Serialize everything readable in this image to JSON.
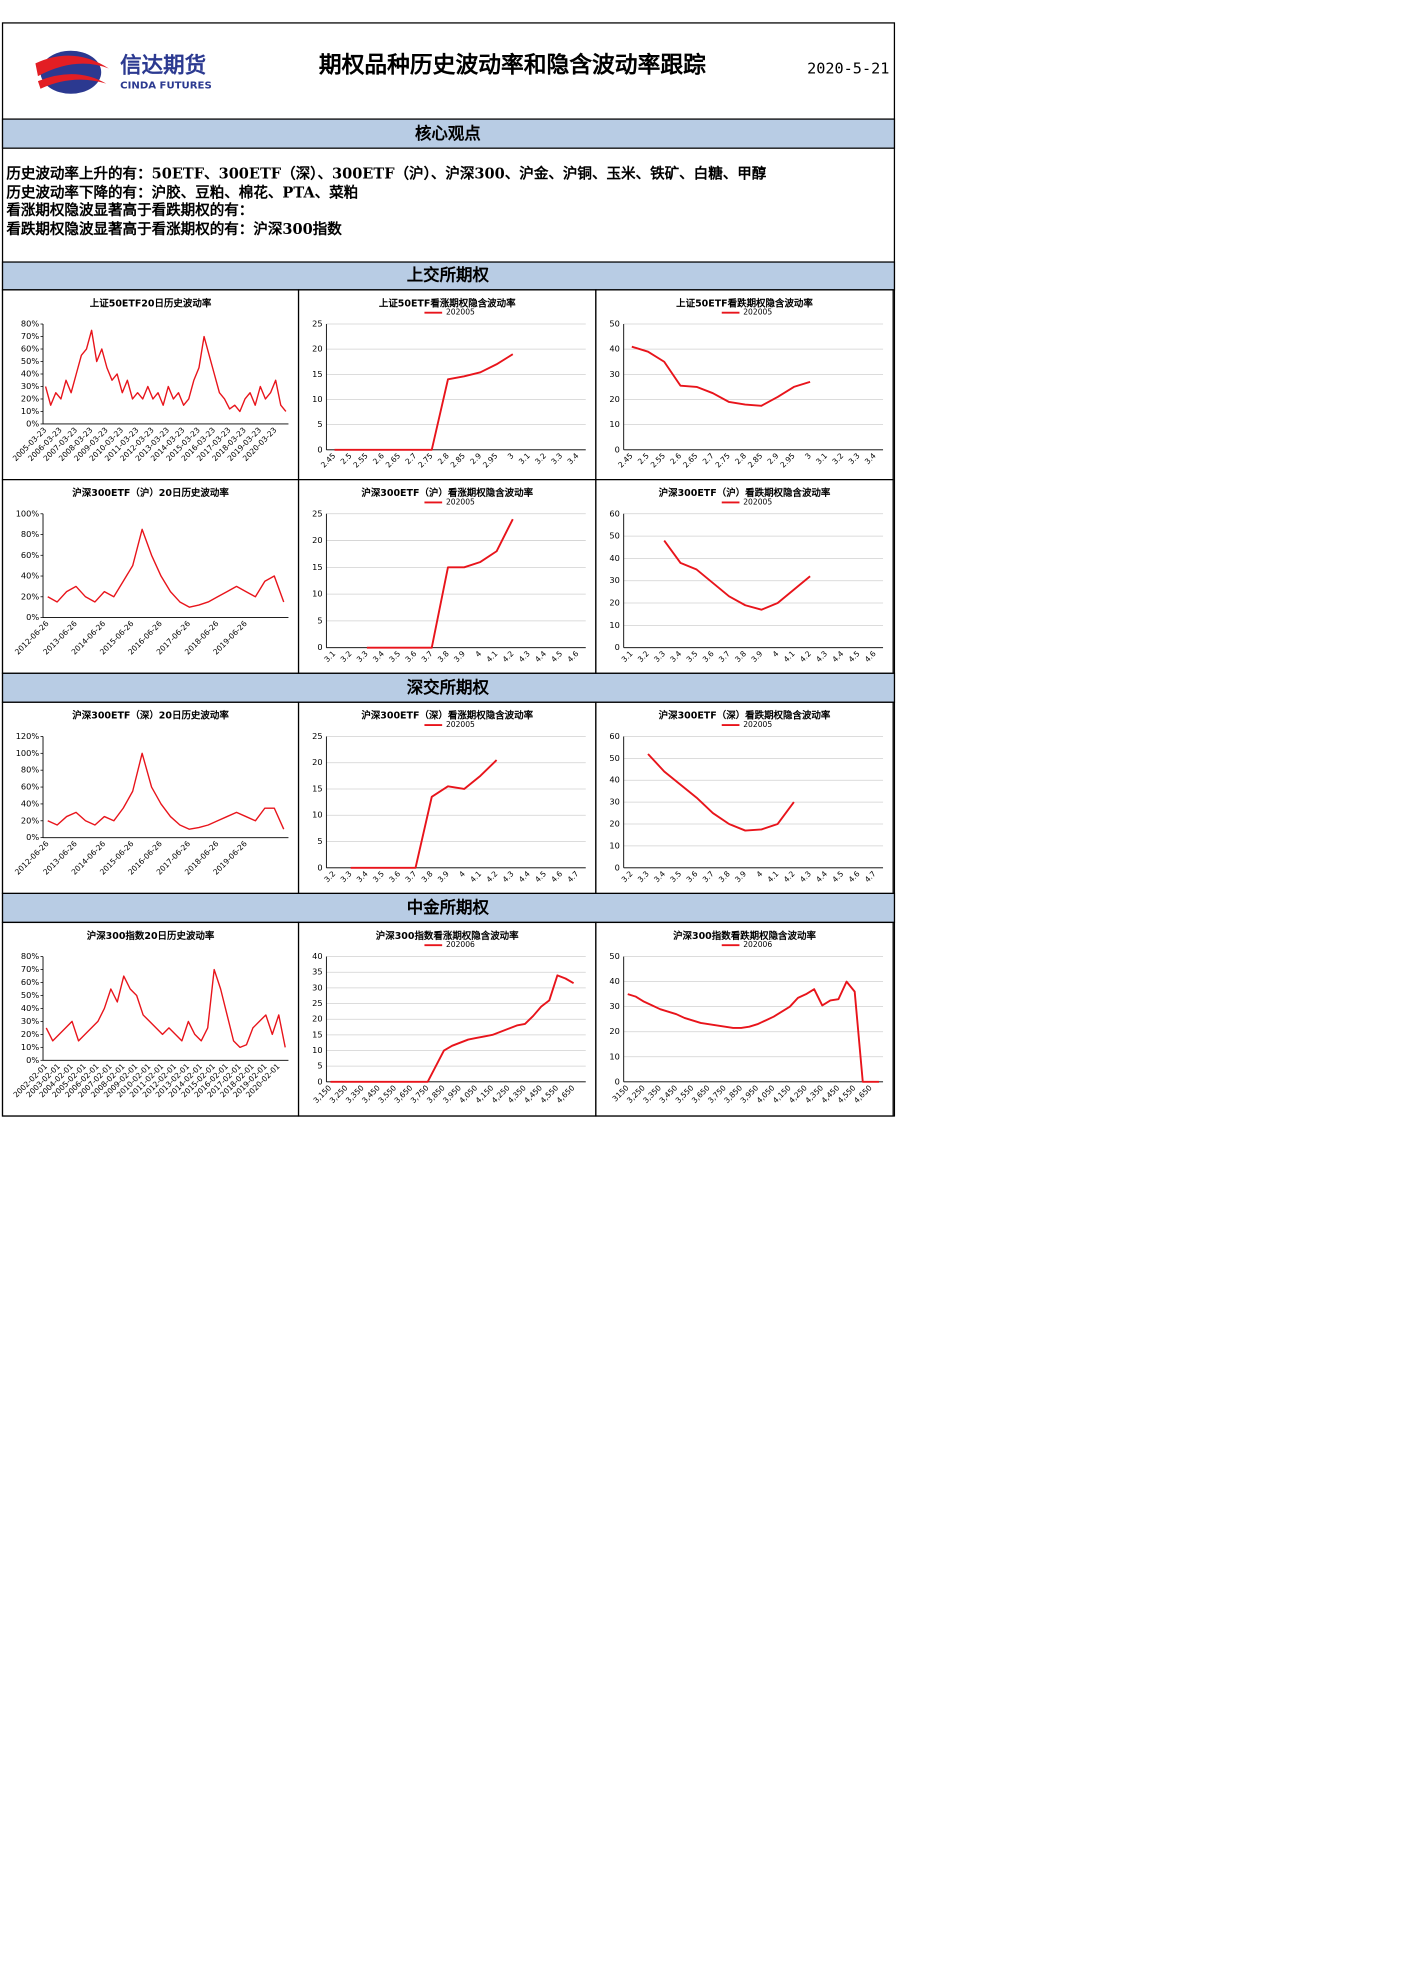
{
  "header": {
    "logo_cn": "信达期货",
    "logo_en": "CINDA FUTURES",
    "title": "期权品种历史波动率和隐含波动率跟踪",
    "date": "2020-5-21"
  },
  "core_view": {
    "title": "核心观点",
    "lines": [
      "历史波动率上升的有：50ETF、300ETF（深）、300ETF（沪）、沪深300、沪金、沪铜、玉米、铁矿、白糖、甲醇",
      "历史波动率下降的有：沪胶、豆粕、棉花、PTA、菜粕",
      "看涨期权隐波显著高于看跌期权的有：",
      "看跌期权隐波显著高于看涨期权的有：沪深300指数"
    ]
  },
  "sections": [
    "上交所期权",
    "深交所期权",
    "中金所期权"
  ],
  "chart_data": [
    {
      "type": "line",
      "title": "上证50ETF20日历史波动率",
      "color": "#e8141b",
      "categories": [
        "2005-03-23",
        null,
        null,
        "2006-03-23",
        null,
        null,
        "2007-03-23",
        null,
        null,
        "2008-03-23",
        null,
        null,
        "2009-03-23",
        null,
        null,
        "2010-03-23",
        null,
        null,
        "2011-03-23",
        null,
        null,
        "2012-03-23",
        null,
        null,
        "2013-03-23",
        null,
        null,
        "2014-03-23",
        null,
        null,
        "2015-03-23",
        null,
        null,
        "2016-03-23",
        null,
        null,
        "2017-03-23",
        null,
        null,
        "2018-03-23",
        null,
        null,
        "2019-03-23",
        null,
        null,
        "2020-03-23",
        null,
        null
      ],
      "values": [
        30,
        15,
        25,
        20,
        35,
        25,
        40,
        55,
        60,
        75,
        50,
        60,
        45,
        35,
        40,
        25,
        35,
        20,
        25,
        20,
        30,
        20,
        25,
        15,
        30,
        20,
        25,
        15,
        20,
        35,
        45,
        70,
        55,
        40,
        25,
        20,
        12,
        15,
        10,
        20,
        25,
        15,
        30,
        20,
        25,
        35,
        15,
        10
      ],
      "ylim": [
        0,
        80
      ],
      "yticks": [
        {
          "value": 0,
          "label": "0%"
        },
        {
          "value": 10,
          "label": "10%"
        },
        {
          "value": 20,
          "label": "20%"
        },
        {
          "value": 30,
          "label": "30%"
        },
        {
          "value": 40,
          "label": "40%"
        },
        {
          "value": 50,
          "label": "50%"
        },
        {
          "value": 60,
          "label": "60%"
        },
        {
          "value": 70,
          "label": "70%"
        },
        {
          "value": 80,
          "label": "80%"
        }
      ],
      "grid": false
    },
    {
      "type": "line",
      "title": "上证50ETF看涨期权隐含波动率",
      "categories": [
        "2.45",
        "2.5",
        "2.55",
        "2.6",
        "2.65",
        "2.7",
        "2.75",
        "2.8",
        "2.85",
        "2.9",
        "2.95",
        "3",
        "3.1",
        "3.2",
        "3.3",
        "3.4"
      ],
      "series": [
        {
          "name": "202005",
          "color": "#e8141b",
          "values": [
            0,
            0,
            0,
            0,
            0,
            0,
            0,
            14,
            14.6,
            15.4,
            17,
            19,
            null,
            null,
            null,
            null
          ]
        }
      ],
      "ylim": [
        0,
        25
      ],
      "yticks": [
        0,
        5,
        10,
        15,
        20,
        25
      ],
      "grid": true
    },
    {
      "type": "line",
      "title": "上证50ETF看跌期权隐含波动率",
      "categories": [
        "2.45",
        "2.5",
        "2.55",
        "2.6",
        "2.65",
        "2.7",
        "2.75",
        "2.8",
        "2.85",
        "2.9",
        "2.95",
        "3",
        "3.1",
        "3.2",
        "3.3",
        "3.4"
      ],
      "series": [
        {
          "name": "202005",
          "color": "#e8141b",
          "values": [
            41,
            39,
            35,
            25.5,
            25,
            22.5,
            19,
            18,
            17.5,
            21,
            25,
            27,
            null,
            null,
            null,
            null
          ]
        }
      ],
      "ylim": [
        0,
        50
      ],
      "yticks": [
        0,
        10,
        20,
        30,
        40,
        50
      ],
      "grid": true
    },
    {
      "type": "line",
      "title": "沪深300ETF（沪）20日历史波动率",
      "color": "#e8141b",
      "categories": [
        "2012-06-26",
        null,
        null,
        "2013-06-26",
        null,
        null,
        "2014-06-26",
        null,
        null,
        "2015-06-26",
        null,
        null,
        "2016-06-26",
        null,
        null,
        "2017-06-26",
        null,
        null,
        "2018-06-26",
        null,
        null,
        "2019-06-26",
        null,
        null,
        null,
        null
      ],
      "values": [
        20,
        15,
        25,
        30,
        20,
        15,
        25,
        20,
        35,
        50,
        85,
        60,
        40,
        25,
        15,
        10,
        12,
        15,
        20,
        25,
        30,
        25,
        20,
        35,
        40,
        15
      ],
      "ylim": [
        0,
        100
      ],
      "yticks": [
        {
          "value": 0,
          "label": "0%"
        },
        {
          "value": 20,
          "label": "20%"
        },
        {
          "value": 40,
          "label": "40%"
        },
        {
          "value": 60,
          "label": "60%"
        },
        {
          "value": 80,
          "label": "80%"
        },
        {
          "value": 100,
          "label": "100%"
        }
      ],
      "grid": false
    },
    {
      "type": "line",
      "title": "沪深300ETF（沪）看涨期权隐含波动率",
      "categories": [
        "3.1",
        "3.2",
        "3.3",
        "3.4",
        "3.5",
        "3.6",
        "3.7",
        "3.8",
        "3.9",
        "4",
        "4.1",
        "4.2",
        "4.3",
        "4.4",
        "4.5",
        "4.6"
      ],
      "series": [
        {
          "name": "202005",
          "color": "#e8141b",
          "values": [
            null,
            null,
            0,
            0,
            0,
            0,
            0,
            15,
            15,
            16,
            18,
            24,
            null,
            null,
            null,
            null
          ]
        }
      ],
      "ylim": [
        0,
        25
      ],
      "yticks": [
        0,
        5,
        10,
        15,
        20,
        25
      ],
      "grid": true
    },
    {
      "type": "line",
      "title": "沪深300ETF（沪）看跌期权隐含波动率",
      "categories": [
        "3.1",
        "3.2",
        "3.3",
        "3.4",
        "3.5",
        "3.6",
        "3.7",
        "3.8",
        "3.9",
        "4",
        "4.1",
        "4.2",
        "4.3",
        "4.4",
        "4.5",
        "4.6"
      ],
      "series": [
        {
          "name": "202005",
          "color": "#e8141b",
          "values": [
            null,
            null,
            48,
            38,
            35,
            29,
            23,
            19,
            17,
            20,
            26,
            32,
            null,
            null,
            null,
            null
          ]
        }
      ],
      "ylim": [
        0,
        60
      ],
      "yticks": [
        0,
        10,
        20,
        30,
        40,
        50,
        60
      ],
      "grid": true
    },
    {
      "type": "line",
      "title": "沪深300ETF（深）20日历史波动率",
      "color": "#e8141b",
      "categories": [
        "2012-06-26",
        null,
        null,
        "2013-06-26",
        null,
        null,
        "2014-06-26",
        null,
        null,
        "2015-06-26",
        null,
        null,
        "2016-06-26",
        null,
        null,
        "2017-06-26",
        null,
        null,
        "2018-06-26",
        null,
        null,
        "2019-06-26",
        null,
        null,
        null,
        null
      ],
      "values": [
        20,
        15,
        25,
        30,
        20,
        15,
        25,
        20,
        35,
        55,
        100,
        60,
        40,
        25,
        15,
        10,
        12,
        15,
        20,
        25,
        30,
        25,
        20,
        35,
        35,
        10
      ],
      "ylim": [
        0,
        120
      ],
      "yticks": [
        {
          "value": 0,
          "label": "0%"
        },
        {
          "value": 20,
          "label": "20%"
        },
        {
          "value": 40,
          "label": "40%"
        },
        {
          "value": 60,
          "label": "60%"
        },
        {
          "value": 80,
          "label": "80%"
        },
        {
          "value": 100,
          "label": "100%"
        },
        {
          "value": 120,
          "label": "120%"
        }
      ],
      "grid": false
    },
    {
      "type": "line",
      "title": "沪深300ETF（深）看涨期权隐含波动率",
      "categories": [
        "3.2",
        "3.3",
        "3.4",
        "3.5",
        "3.6",
        "3.7",
        "3.8",
        "3.9",
        "4",
        "4.1",
        "4.2",
        "4.3",
        "4.4",
        "4.5",
        "4.6",
        "4.7"
      ],
      "series": [
        {
          "name": "202005",
          "color": "#e8141b",
          "values": [
            null,
            0,
            0,
            0,
            0,
            0,
            13.5,
            15.5,
            15,
            17.5,
            20.5,
            null,
            null,
            null,
            null,
            null
          ]
        }
      ],
      "ylim": [
        0,
        25
      ],
      "yticks": [
        0,
        5,
        10,
        15,
        20,
        25
      ],
      "grid": true
    },
    {
      "type": "line",
      "title": "沪深300ETF（深）看跌期权隐含波动率",
      "categories": [
        "3.2",
        "3.3",
        "3.4",
        "3.5",
        "3.6",
        "3.7",
        "3.8",
        "3.9",
        "4",
        "4.1",
        "4.2",
        "4.3",
        "4.4",
        "4.5",
        "4.6",
        "4.7"
      ],
      "series": [
        {
          "name": "202005",
          "color": "#e8141b",
          "values": [
            null,
            52,
            44,
            38,
            32,
            25,
            20,
            17,
            17.5,
            20,
            30,
            null,
            null,
            null,
            null,
            null
          ]
        }
      ],
      "ylim": [
        0,
        60
      ],
      "yticks": [
        0,
        10,
        20,
        30,
        40,
        50,
        60
      ],
      "grid": true
    },
    {
      "type": "line",
      "title": "沪深300指数20日历史波动率",
      "color": "#e8141b",
      "categories": [
        "2002-02-01",
        null,
        "2003-02-01",
        null,
        "2004-02-01",
        null,
        "2005-02-01",
        null,
        "2006-02-01",
        null,
        "2007-02-01",
        null,
        "2008-02-01",
        null,
        "2009-02-01",
        null,
        "2010-02-01",
        null,
        "2011-02-01",
        null,
        "2012-02-01",
        null,
        "2013-02-01",
        null,
        "2014-02-01",
        null,
        "2015-02-01",
        null,
        "2016-02-01",
        null,
        "2017-02-01",
        null,
        "2018-02-01",
        null,
        "2019-02-01",
        null,
        "2020-02-01",
        null
      ],
      "values": [
        25,
        15,
        20,
        25,
        30,
        15,
        20,
        25,
        30,
        40,
        55,
        45,
        65,
        55,
        50,
        35,
        30,
        25,
        20,
        25,
        20,
        15,
        30,
        20,
        15,
        25,
        70,
        55,
        35,
        15,
        10,
        12,
        25,
        30,
        35,
        20,
        35,
        10
      ],
      "ylim": [
        0,
        80
      ],
      "yticks": [
        {
          "value": 0,
          "label": "0%"
        },
        {
          "value": 10,
          "label": "10%"
        },
        {
          "value": 20,
          "label": "20%"
        },
        {
          "value": 30,
          "label": "30%"
        },
        {
          "value": 40,
          "label": "40%"
        },
        {
          "value": 50,
          "label": "50%"
        },
        {
          "value": 60,
          "label": "60%"
        },
        {
          "value": 70,
          "label": "70%"
        },
        {
          "value": 80,
          "label": "80%"
        }
      ],
      "grid": false
    },
    {
      "type": "line",
      "title": "沪深300指数看涨期权隐含波动率",
      "categories": [
        "3,150",
        null,
        "3,250",
        null,
        "3,350",
        null,
        "3,450",
        null,
        "3,550",
        null,
        "3,650",
        null,
        "3,750",
        null,
        "3,850",
        null,
        "3,950",
        null,
        "4,050",
        null,
        "4,150",
        null,
        "4,250",
        null,
        "4,350",
        null,
        "4,450",
        null,
        "4,550",
        null,
        "4,650",
        null
      ],
      "series": [
        {
          "name": "202006",
          "color": "#e8141b",
          "values": [
            0,
            0,
            0,
            0,
            0,
            0,
            0,
            0,
            0,
            0,
            0,
            0,
            0,
            5,
            10,
            11.5,
            12.5,
            13.5,
            14,
            14.5,
            15,
            16,
            17,
            18,
            18.5,
            21,
            24,
            26,
            34,
            33,
            31.5,
            null
          ]
        }
      ],
      "ylim": [
        0,
        40
      ],
      "yticks": [
        0,
        5,
        10,
        15,
        20,
        25,
        30,
        35,
        40
      ],
      "grid": true
    },
    {
      "type": "line",
      "title": "沪深300指数看跌期权隐含波动率",
      "categories": [
        "3150",
        null,
        "3,250",
        null,
        "3,350",
        null,
        "3,450",
        null,
        "3,550",
        null,
        "3,650",
        null,
        "3,750",
        null,
        "3,850",
        null,
        "3,950",
        null,
        "4,050",
        null,
        "4,150",
        null,
        "4,250",
        null,
        "4,350",
        null,
        "4,450",
        null,
        "4,550",
        null,
        "4,650",
        null
      ],
      "series": [
        {
          "name": "202006",
          "color": "#e8141b",
          "values": [
            35,
            34,
            32,
            30.5,
            29,
            28,
            27,
            25.5,
            24.5,
            23.5,
            23,
            22.5,
            22,
            21.5,
            21.5,
            22,
            23,
            24.5,
            26,
            28,
            30,
            33.5,
            35,
            37,
            30.5,
            32.5,
            33,
            40,
            36,
            0,
            0,
            0
          ]
        }
      ],
      "ylim": [
        0,
        50
      ],
      "yticks": [
        0,
        10,
        20,
        30,
        40,
        50
      ],
      "grid": true
    }
  ]
}
